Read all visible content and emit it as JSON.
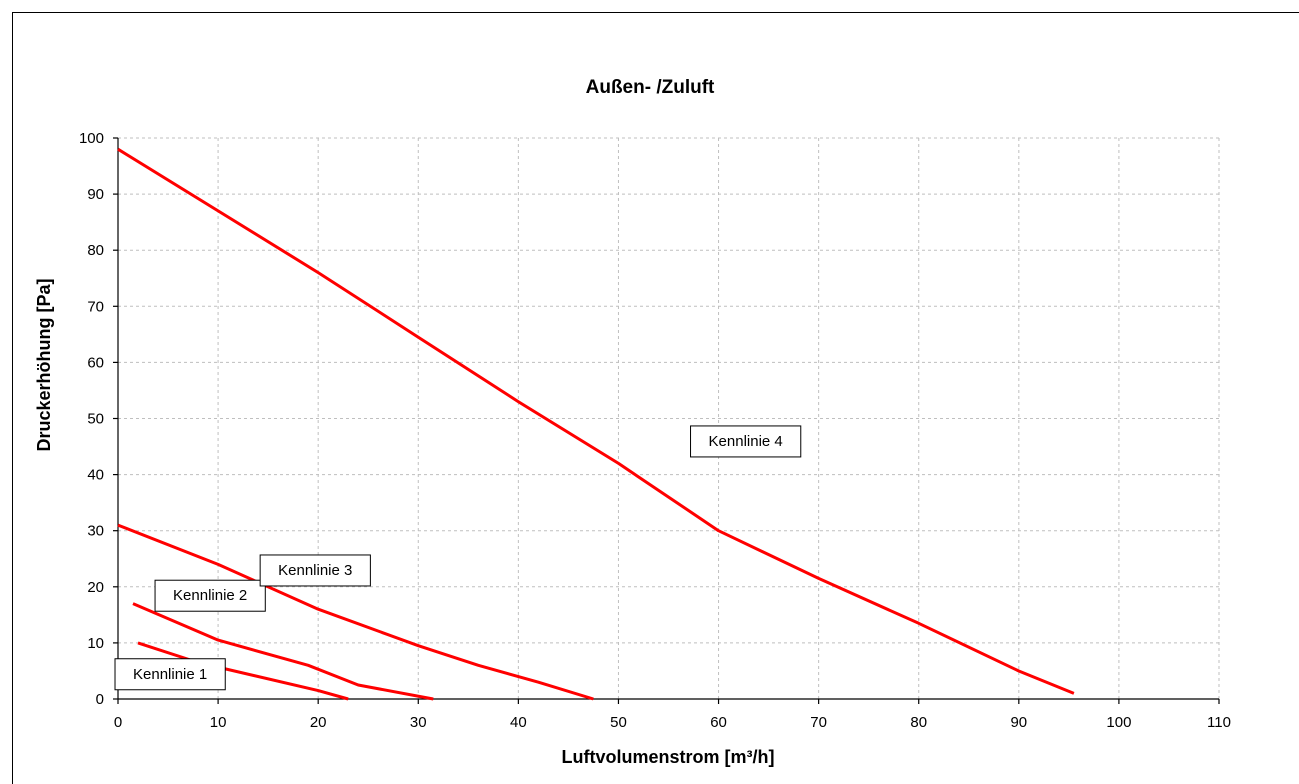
{
  "chart_data": {
    "type": "line",
    "title": "Außen- /Zuluft",
    "xlabel": "Luftvolumenstrom [m³/h]",
    "ylabel": "Druckerhöhung [Pa]",
    "xlim": [
      0,
      110
    ],
    "ylim": [
      0,
      100
    ],
    "xticks": [
      0,
      10,
      20,
      30,
      40,
      50,
      60,
      70,
      80,
      90,
      100,
      110
    ],
    "yticks": [
      0,
      10,
      20,
      30,
      40,
      50,
      60,
      70,
      80,
      90,
      100
    ],
    "grid": true,
    "colors": {
      "series": "#ff0000",
      "grid": "#bfbfbf"
    },
    "series": [
      {
        "points": [
          [
            2,
            10
          ],
          [
            8,
            6.5
          ],
          [
            20,
            1.5
          ],
          [
            23,
            0
          ]
        ]
      },
      {
        "points": [
          [
            1.5,
            17
          ],
          [
            10,
            10.5
          ],
          [
            19,
            6
          ],
          [
            24,
            2.5
          ],
          [
            31.5,
            0
          ]
        ]
      },
      {
        "points": [
          [
            0,
            31
          ],
          [
            10,
            24
          ],
          [
            20,
            16
          ],
          [
            30,
            9.5
          ],
          [
            36,
            6
          ],
          [
            42,
            3
          ],
          [
            47.5,
            0
          ]
        ]
      },
      {
        "points": [
          [
            0,
            98
          ],
          [
            10,
            87
          ],
          [
            20,
            76
          ],
          [
            30,
            64.5
          ],
          [
            40,
            53
          ],
          [
            50,
            42
          ],
          [
            60,
            30
          ],
          [
            70,
            21.5
          ],
          [
            80,
            13.5
          ],
          [
            90,
            5
          ],
          [
            95.5,
            1
          ]
        ]
      }
    ],
    "annotations": [
      {
        "text": "Kennlinie 1",
        "x": 1.5,
        "y": 4.5
      },
      {
        "text": "Kennlinie 2",
        "x": 5.5,
        "y": 18.5
      },
      {
        "text": "Kennlinie 3",
        "x": 16,
        "y": 23
      },
      {
        "text": "Kennlinie 4",
        "x": 59,
        "y": 46
      }
    ]
  }
}
